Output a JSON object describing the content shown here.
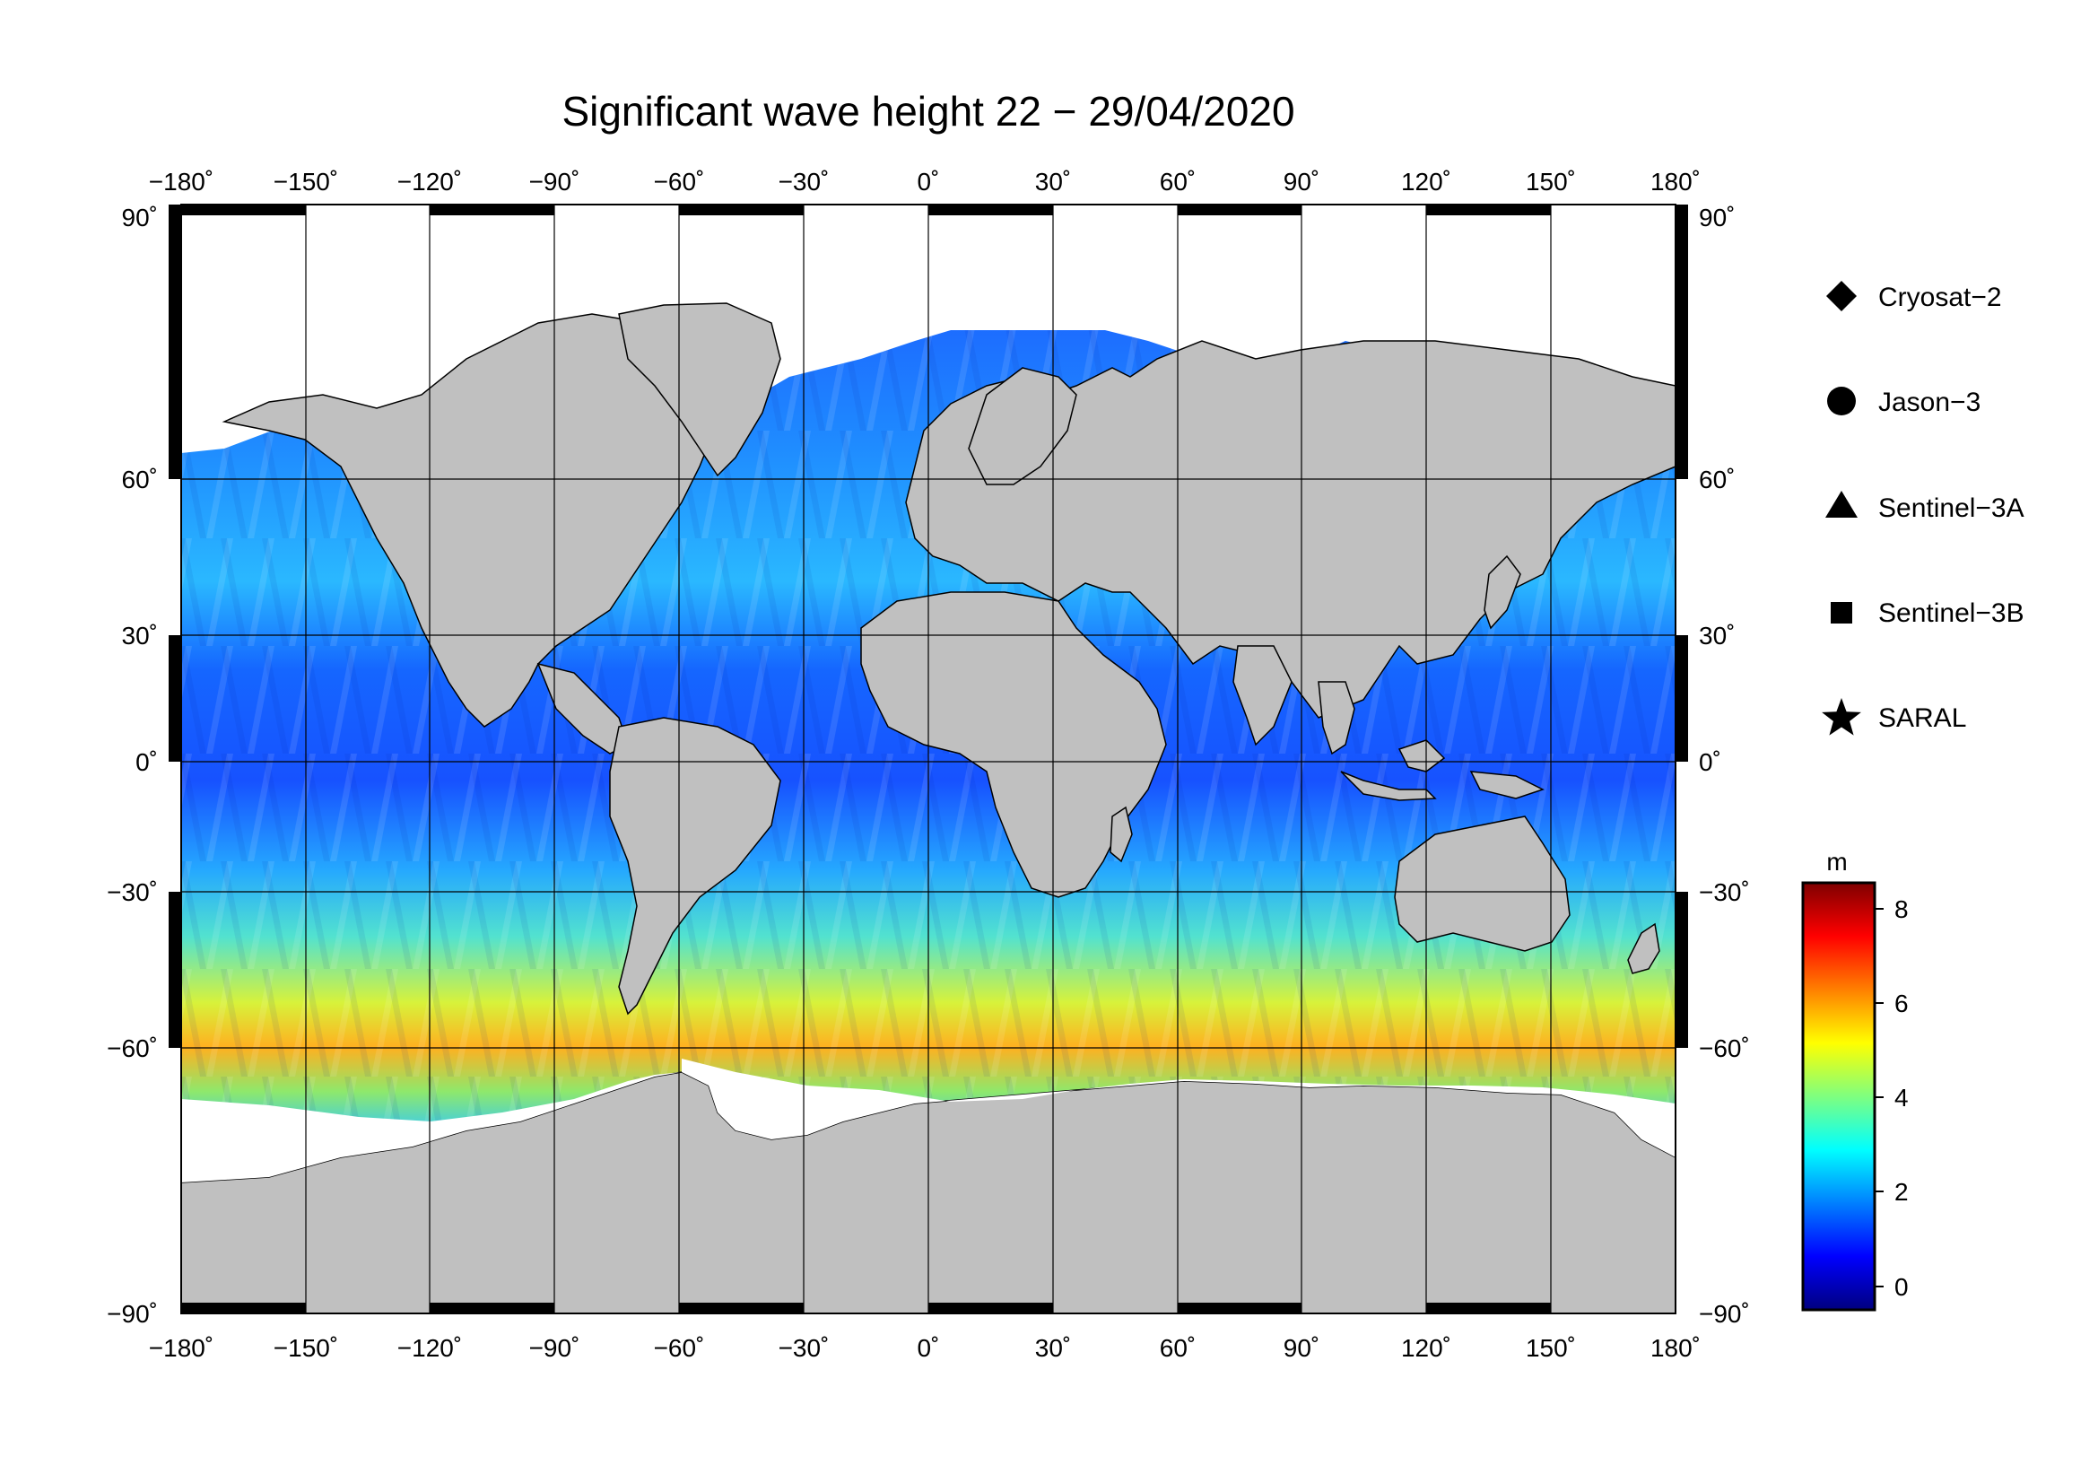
{
  "title": "Significant wave height 22 − 29/04/2020",
  "axes": {
    "lon_ticks": [
      "−180˚",
      "−150˚",
      "−120˚",
      "−90˚",
      "−60˚",
      "−30˚",
      "0˚",
      "30˚",
      "60˚",
      "90˚",
      "120˚",
      "150˚",
      "180˚"
    ],
    "lat_ticks": [
      "90˚",
      "60˚",
      "30˚",
      "0˚",
      "−30˚",
      "−60˚",
      "−90˚"
    ],
    "lon_range": [
      -180,
      180
    ],
    "lat_range": [
      -90,
      90
    ],
    "grid": true
  },
  "legend": {
    "placement": "right",
    "items": [
      {
        "label": "Cryosat−2",
        "marker": "diamond"
      },
      {
        "label": "Jason−3",
        "marker": "circle"
      },
      {
        "label": "Sentinel−3A",
        "marker": "triangle"
      },
      {
        "label": "Sentinel−3B",
        "marker": "square"
      },
      {
        "label": "SARAL",
        "marker": "star"
      }
    ]
  },
  "colorbar": {
    "unit": "m",
    "ticks": [
      "8",
      "6",
      "4",
      "2",
      "0"
    ],
    "range": [
      -0.6,
      8.6
    ],
    "colormap": "jet"
  },
  "colors": {
    "land": "#c0c0c0",
    "ice": "#ffffff",
    "frame": "#000000"
  }
}
